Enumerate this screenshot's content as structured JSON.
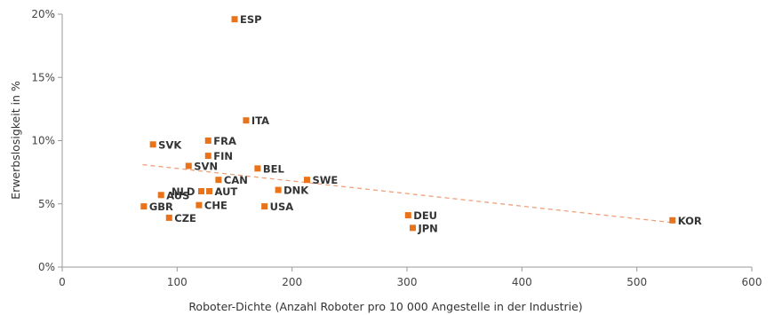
{
  "chart_data": {
    "type": "scatter",
    "title": "",
    "xlabel": "Roboter-Dichte (Anzahl Roboter pro 10 000 Angestelle in der Industrie)",
    "ylabel": "Erwerbslosigkeit in %",
    "xlim": [
      0,
      600
    ],
    "ylim": [
      0,
      20
    ],
    "x_ticks": [
      0,
      100,
      200,
      300,
      400,
      500,
      600
    ],
    "x_tick_labels": [
      "0",
      "100",
      "200",
      "300",
      "400",
      "500",
      "600"
    ],
    "y_ticks": [
      0,
      5,
      10,
      15,
      20
    ],
    "y_tick_labels": [
      "0%",
      "5%",
      "10%",
      "15%",
      "20%"
    ],
    "grid": false,
    "marker_color": "#E8731A",
    "trendline_color": "#F0A07A",
    "trendline": {
      "x": [
        70,
        533
      ],
      "y": [
        8.1,
        3.5
      ]
    },
    "points": [
      {
        "label": "ESP",
        "x": 150,
        "y": 19.6
      },
      {
        "label": "ITA",
        "x": 160,
        "y": 11.6
      },
      {
        "label": "SVK",
        "x": 79,
        "y": 9.7
      },
      {
        "label": "FRA",
        "x": 127,
        "y": 10.0
      },
      {
        "label": "FIN",
        "x": 127,
        "y": 8.8
      },
      {
        "label": "SVN",
        "x": 110,
        "y": 8.0
      },
      {
        "label": "BEL",
        "x": 170,
        "y": 7.8
      },
      {
        "label": "SWE",
        "x": 213,
        "y": 6.9
      },
      {
        "label": "CAN",
        "x": 136,
        "y": 6.9
      },
      {
        "label": "NLD",
        "x": 121,
        "y": 6.0
      },
      {
        "label": "AUT",
        "x": 128,
        "y": 6.0
      },
      {
        "label": "DNK",
        "x": 188,
        "y": 6.1
      },
      {
        "label": "AUS",
        "x": 86,
        "y": 5.7
      },
      {
        "label": "CHE",
        "x": 119,
        "y": 4.9
      },
      {
        "label": "USA",
        "x": 176,
        "y": 4.8
      },
      {
        "label": "GBR",
        "x": 71,
        "y": 4.8
      },
      {
        "label": "CZE",
        "x": 93,
        "y": 3.9
      },
      {
        "label": "DEU",
        "x": 301,
        "y": 4.1
      },
      {
        "label": "JPN",
        "x": 305,
        "y": 3.1
      },
      {
        "label": "KOR",
        "x": 531,
        "y": 3.7
      }
    ]
  }
}
